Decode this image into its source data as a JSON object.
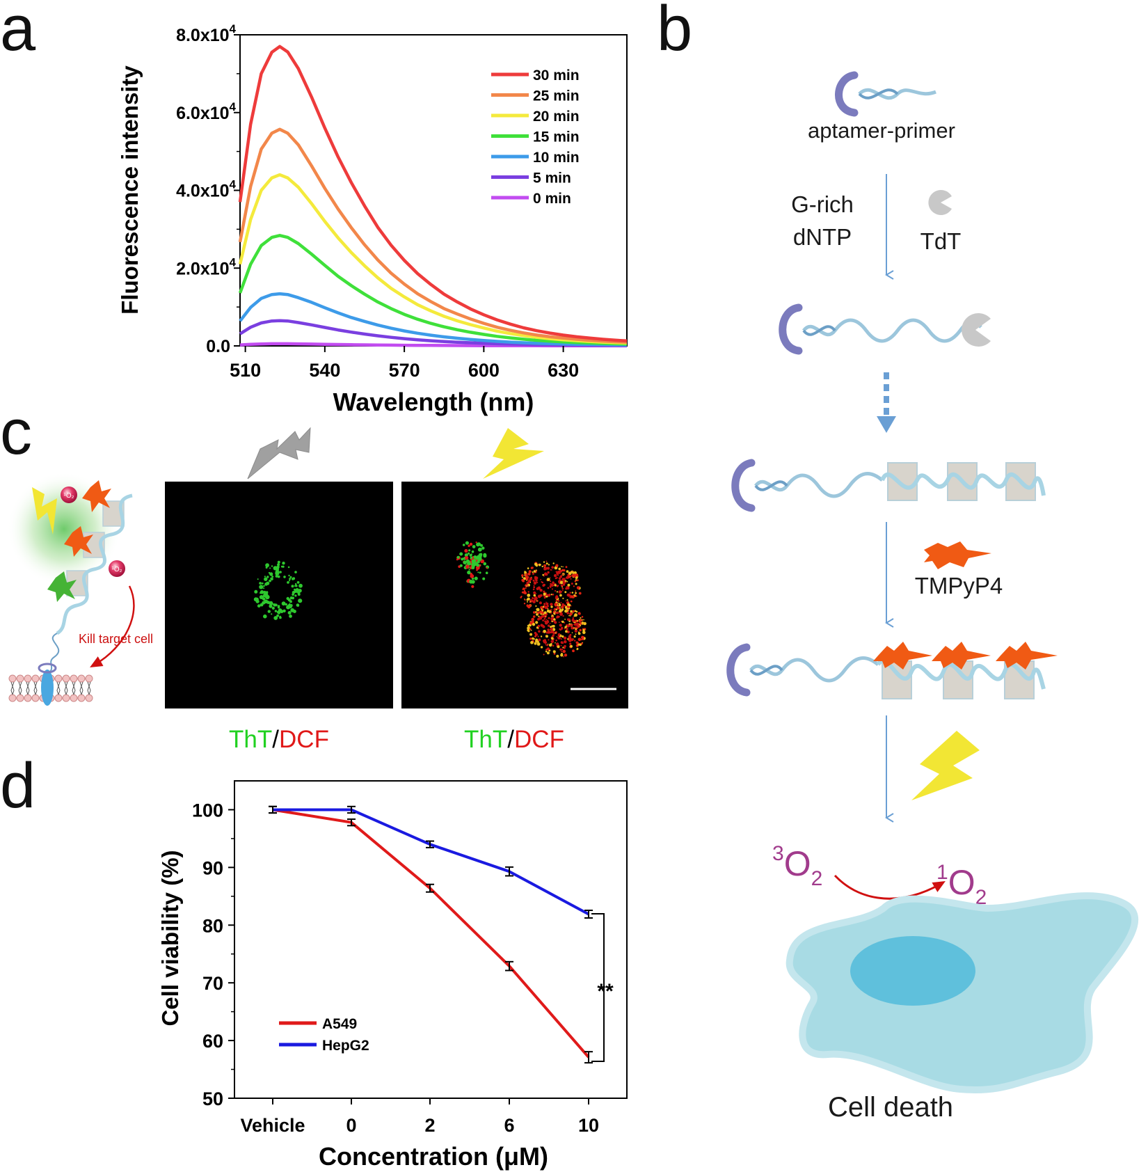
{
  "panel_labels": {
    "a": "a",
    "b": "b",
    "c": "c",
    "d": "d"
  },
  "colors": {
    "m30": "#ee3b3b",
    "m25": "#f2874a",
    "m20": "#f4ea3c",
    "m15": "#3fe03a",
    "m10": "#3d9be9",
    "m5": "#7a3fe0",
    "m0": "#c24cf0",
    "a549": "#e01a1a",
    "hepg2": "#1a1ae0",
    "arrow": "#6a9fd4",
    "dna": "#9cc6dc",
    "ring": "#7b7bbd",
    "star": "#f05a14",
    "bolt": "#f2e634",
    "oxygen": "#a13b8c",
    "cell": "#a8dbe4",
    "nucleus": "#5fc0dc",
    "ros": "#d2143c"
  },
  "chart_data": [
    {
      "id": "a",
      "type": "line",
      "title": "",
      "xlabel": "Wavelength (nm)",
      "ylabel": "Fluorescence intensity",
      "xlim": [
        508,
        654
      ],
      "ylim": [
        0,
        80000
      ],
      "x_ticks": [
        510,
        540,
        570,
        600,
        630
      ],
      "y_ticks": [
        {
          "value": 0,
          "label": "0.0"
        },
        {
          "value": 20000,
          "label": "2.0x10",
          "exp": "4"
        },
        {
          "value": 40000,
          "label": "4.0x10",
          "exp": "4"
        },
        {
          "value": 60000,
          "label": "6.0x10",
          "exp": "4"
        },
        {
          "value": 80000,
          "label": "8.0x10",
          "exp": "4"
        }
      ],
      "legend_position": "top-right",
      "x": [
        508,
        512,
        516,
        520,
        523,
        526,
        530,
        535,
        540,
        545,
        550,
        555,
        560,
        565,
        570,
        575,
        580,
        585,
        590,
        595,
        600,
        605,
        610,
        615,
        620,
        625,
        630,
        635,
        640,
        645,
        650,
        654
      ],
      "series": [
        {
          "name": "30 min",
          "color_key": "m30",
          "values": [
            37000,
            57000,
            70000,
            75500,
            77000,
            75600,
            71300,
            64000,
            56000,
            48600,
            42000,
            36000,
            30500,
            25900,
            22000,
            18600,
            15800,
            13300,
            11300,
            9500,
            8000,
            6700,
            5600,
            4650,
            3900,
            3300,
            2780,
            2350,
            2000,
            1700,
            1450,
            1300
          ]
        },
        {
          "name": "25 min",
          "color_key": "m25",
          "values": [
            26700,
            41000,
            50600,
            54700,
            55700,
            54700,
            51700,
            46300,
            40500,
            35200,
            30400,
            26000,
            22100,
            18700,
            15900,
            13400,
            11400,
            9600,
            8200,
            6900,
            5800,
            4800,
            4000,
            3350,
            2800,
            2350,
            2000,
            1700,
            1440,
            1230,
            1050,
            930
          ]
        },
        {
          "name": "20 min",
          "color_key": "m20",
          "values": [
            21000,
            32500,
            40000,
            43200,
            44000,
            43200,
            40800,
            36600,
            32000,
            27800,
            24000,
            20600,
            17500,
            14800,
            12600,
            10600,
            9000,
            7600,
            6450,
            5450,
            4600,
            3800,
            3170,
            2650,
            2220,
            1860,
            1580,
            1340,
            1140,
            970,
            830,
            730
          ]
        },
        {
          "name": "15 min",
          "color_key": "m15",
          "values": [
            13600,
            21000,
            25800,
            27900,
            28400,
            27900,
            26300,
            23600,
            20700,
            17900,
            15500,
            13300,
            11300,
            9600,
            8100,
            6850,
            5800,
            4900,
            4150,
            3500,
            2950,
            2460,
            2050,
            1710,
            1430,
            1200,
            1020,
            860,
            730,
            630,
            540,
            470
          ]
        },
        {
          "name": "10 min",
          "color_key": "m10",
          "values": [
            6400,
            9900,
            12200,
            13200,
            13400,
            13200,
            12400,
            11200,
            9800,
            8500,
            7300,
            6300,
            5350,
            4550,
            3850,
            3250,
            2750,
            2320,
            1960,
            1660,
            1400,
            1160,
            970,
            810,
            680,
            570,
            480,
            410,
            350,
            300,
            255,
            225
          ]
        },
        {
          "name": "5 min",
          "color_key": "m5",
          "values": [
            3100,
            4800,
            5900,
            6400,
            6500,
            6400,
            6000,
            5400,
            4750,
            4100,
            3550,
            3050,
            2600,
            2200,
            1870,
            1580,
            1330,
            1120,
            950,
            800,
            680,
            560,
            470,
            390,
            330,
            280,
            235,
            200,
            170,
            145,
            125,
            110
          ]
        },
        {
          "name": "0 min",
          "color_key": "m0",
          "values": [
            250,
            400,
            500,
            550,
            560,
            550,
            520,
            470,
            410,
            360,
            310,
            270,
            230,
            195,
            165,
            140,
            120,
            100,
            85,
            72,
            60,
            50,
            42,
            35,
            30,
            25,
            21,
            18,
            15,
            13,
            11,
            10
          ]
        }
      ]
    },
    {
      "id": "d",
      "type": "line",
      "title": "",
      "xlabel": "Concentration (μM)",
      "ylabel": "Cell viability (%)",
      "categories": [
        "Vehicle",
        "0",
        "2",
        "6",
        "10"
      ],
      "ylim": [
        50,
        105
      ],
      "y_ticks": [
        50,
        60,
        70,
        80,
        90,
        100
      ],
      "legend_position": "bottom-left",
      "significance": "**",
      "series": [
        {
          "name": "A549",
          "color_key": "a549",
          "values": [
            100,
            97.8,
            86.4,
            72.9,
            57.1
          ],
          "errors": [
            0.2,
            0.2,
            0.3,
            0.4,
            0.6
          ]
        },
        {
          "name": "HepG2",
          "color_key": "hepg2",
          "values": [
            100,
            100,
            94,
            89.3,
            81.9
          ],
          "errors": [
            0.2,
            0.2,
            0.2,
            0.4,
            0.3
          ]
        }
      ]
    }
  ],
  "panel_b": {
    "aptamer_label": "aptamer-primer",
    "reagent_line1": "G-rich",
    "reagent_line2": "dNTP",
    "enzyme_label": "TdT",
    "drug_label": "TMPyP4",
    "oxygen_left_sup": "3",
    "oxygen_right_sup": "1",
    "oxygen_symbol": "O",
    "oxygen_sub": "2",
    "result_label": "Cell death"
  },
  "panel_c": {
    "kill_label": "Kill target cell",
    "ros_label": "¹O₂",
    "stain_label_left_green": "ThT",
    "stain_separator": "/",
    "stain_label_left_red": "DCF",
    "stain_label_right_green": "ThT",
    "stain_label_right_red": "DCF"
  }
}
